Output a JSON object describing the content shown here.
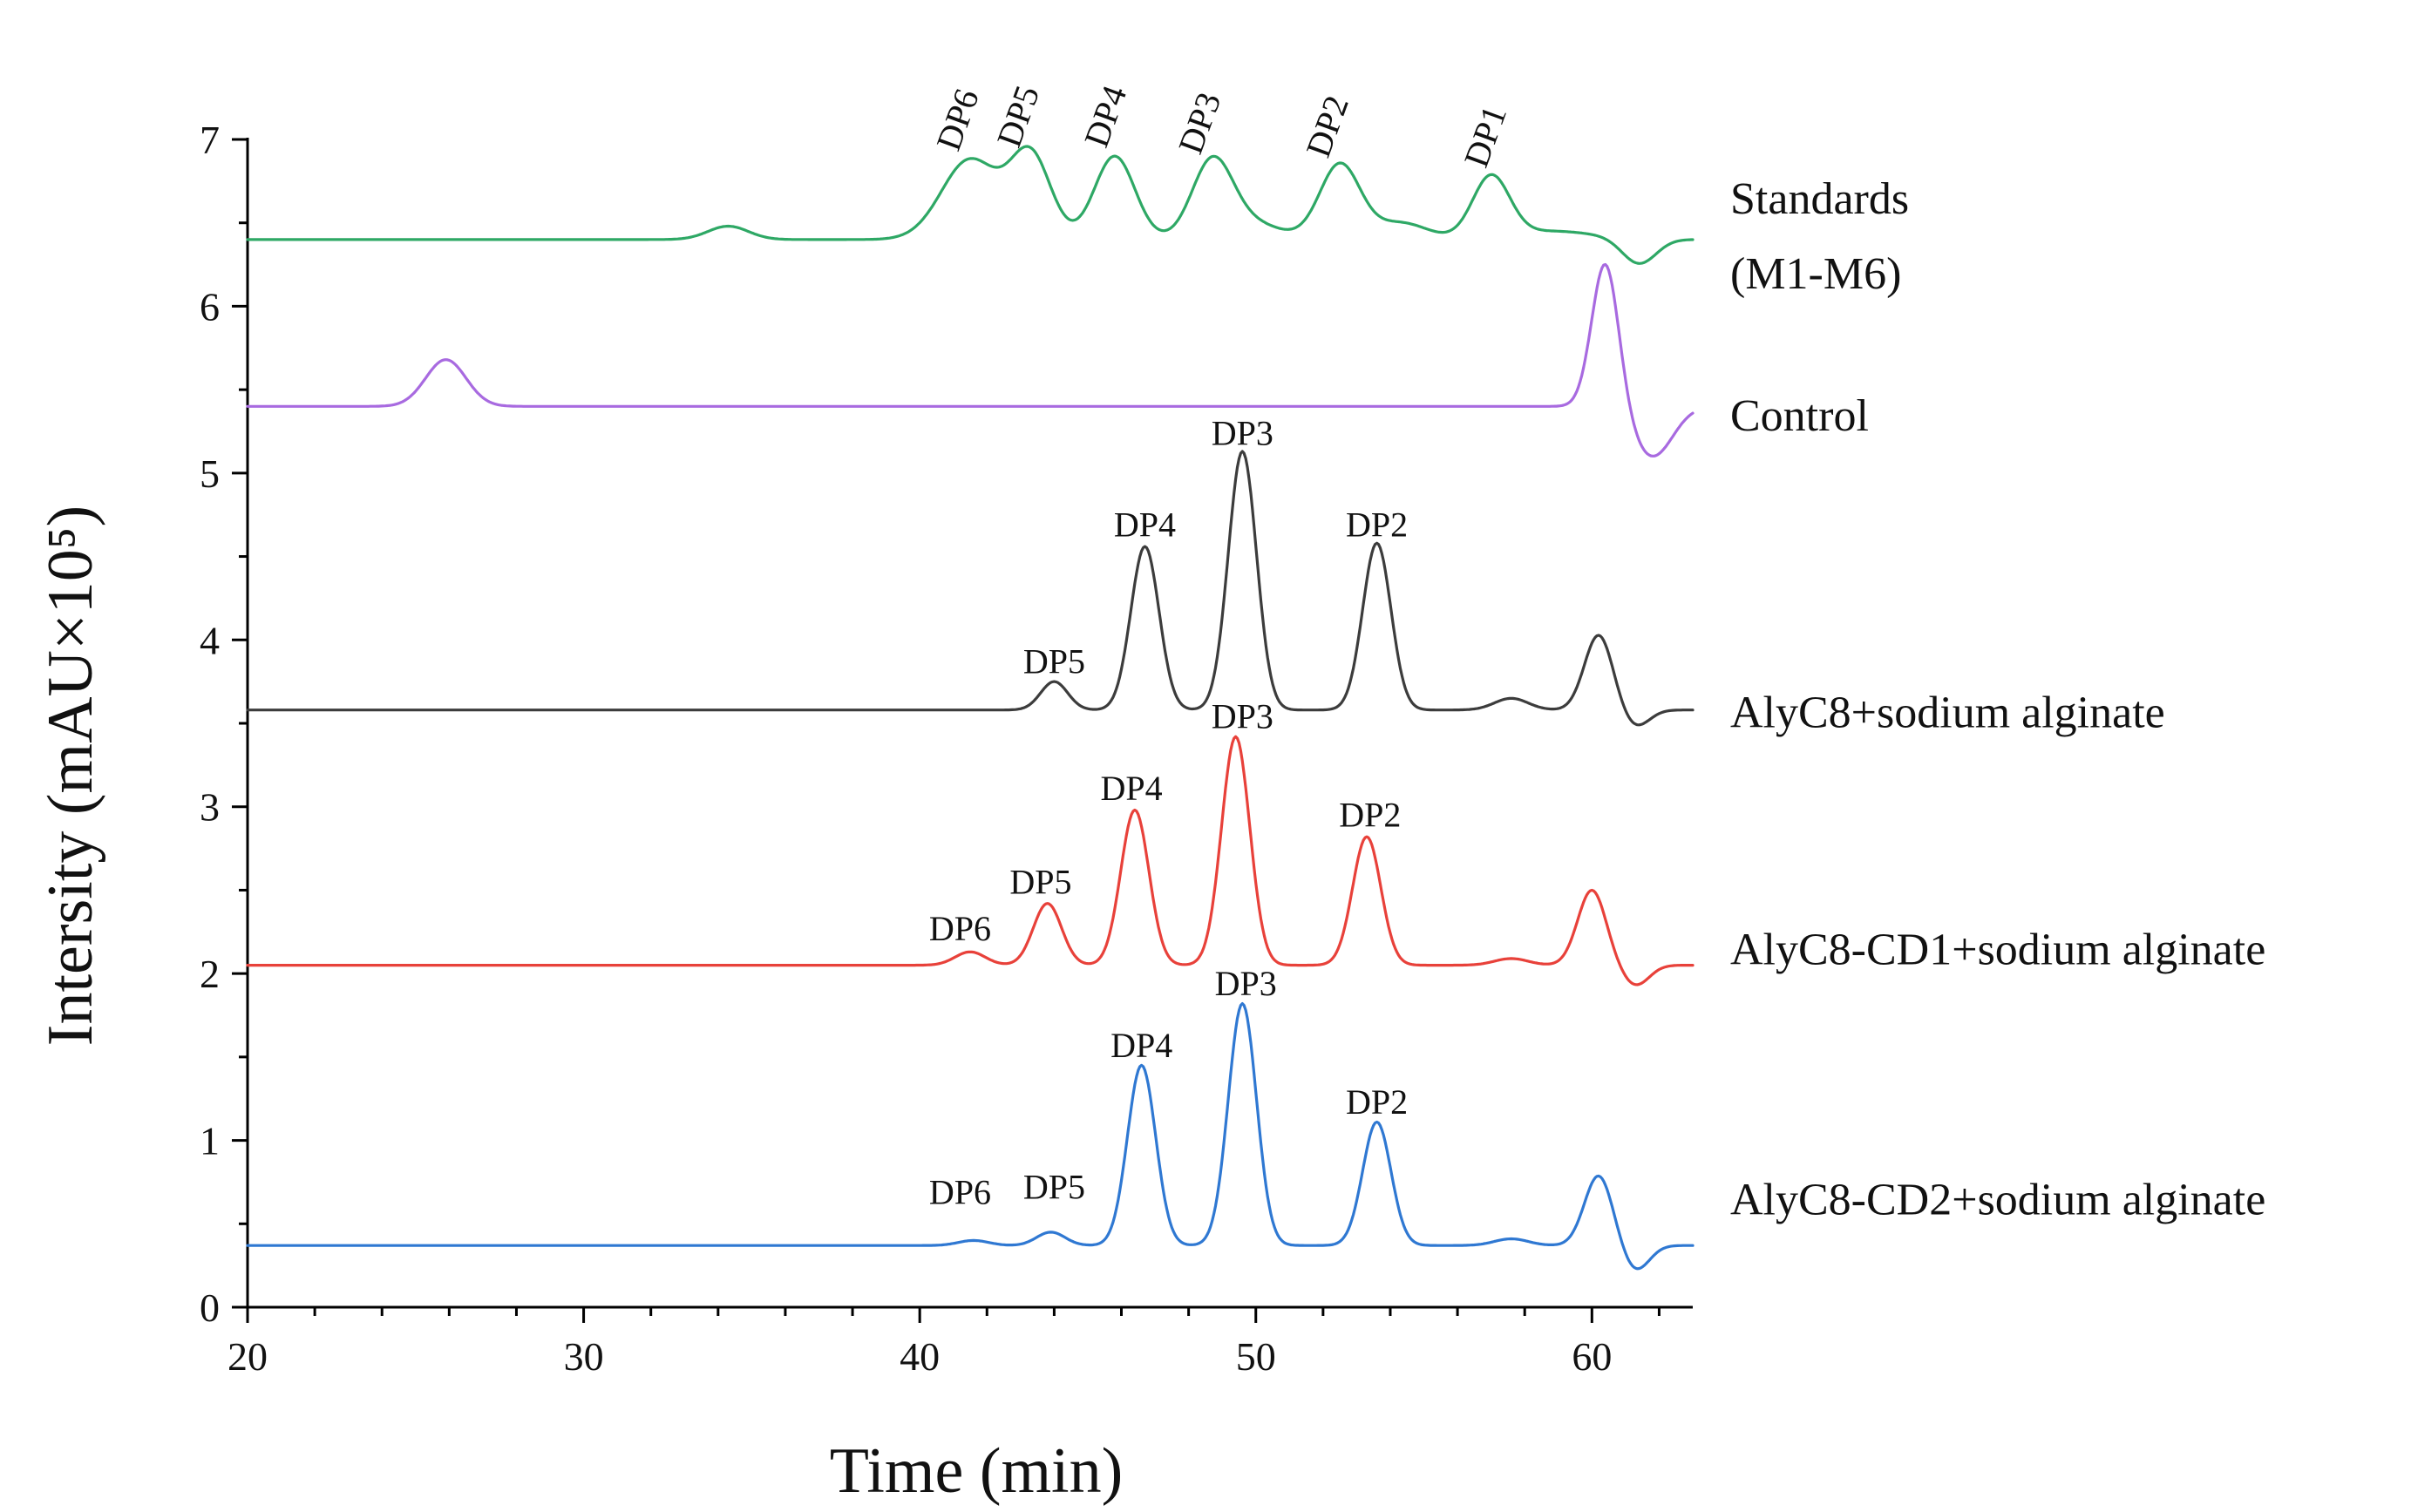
{
  "chart_data": {
    "type": "line",
    "title": "",
    "xlabel": "Time (min)",
    "ylabel": "Intersity (mAU×10⁵)",
    "xlim": [
      20,
      63
    ],
    "ylim": [
      0,
      7
    ],
    "xticks": [
      20,
      30,
      40,
      50,
      60
    ],
    "yticks": [
      0,
      1,
      2,
      3,
      4,
      5,
      6,
      7
    ],
    "series": [
      {
        "name": "Standards (M1-M6)",
        "label_lines": [
          "Standards",
          "(M1-M6)"
        ],
        "color": "#2ea865",
        "baseline": 6.4,
        "peaks": [
          {
            "t": 34.3,
            "h": 0.08,
            "w": 0.6
          },
          {
            "t": 41.5,
            "h": 0.48,
            "w": 0.85
          },
          {
            "t": 43.3,
            "h": 0.5,
            "w": 0.6
          },
          {
            "t": 45.8,
            "h": 0.5,
            "w": 0.6
          },
          {
            "t": 48.7,
            "h": 0.45,
            "w": 0.6
          },
          {
            "t": 52.5,
            "h": 0.45,
            "w": 0.6
          },
          {
            "t": 57.0,
            "h": 0.37,
            "w": 0.55
          },
          {
            "t": 49.8,
            "h": 0.1,
            "w": 0.9
          },
          {
            "t": 54.3,
            "h": 0.1,
            "w": 0.8
          },
          {
            "t": 58.8,
            "h": 0.05,
            "w": 1.3
          },
          {
            "t": 61.4,
            "h": -0.15,
            "w": 0.5
          }
        ],
        "peak_labels": [
          {
            "text": "DP6",
            "t": 41.5,
            "y": 6.92
          },
          {
            "text": "DP5",
            "t": 43.3,
            "y": 6.94
          },
          {
            "text": "DP4",
            "t": 45.9,
            "y": 6.94
          },
          {
            "text": "DP3",
            "t": 48.7,
            "y": 6.9
          },
          {
            "text": "DP2",
            "t": 52.5,
            "y": 6.88
          },
          {
            "text": "DP1",
            "t": 57.2,
            "y": 6.82
          }
        ]
      },
      {
        "name": "Control",
        "label_lines": [
          "Control"
        ],
        "color": "#a86ae0",
        "baseline": 5.4,
        "peaks": [
          {
            "t": 25.9,
            "h": 0.28,
            "w": 0.6
          },
          {
            "t": 60.4,
            "h": 0.87,
            "w": 0.4
          },
          {
            "t": 61.8,
            "h": -0.3,
            "w": 0.6
          }
        ],
        "peak_labels": []
      },
      {
        "name": "AlyC8+sodium alginate",
        "label_lines": [
          "AlyC8+sodium alginate"
        ],
        "color": "#3c3c3c",
        "baseline": 3.58,
        "peaks": [
          {
            "t": 44.0,
            "h": 0.17,
            "w": 0.4
          },
          {
            "t": 46.7,
            "h": 0.98,
            "w": 0.42
          },
          {
            "t": 49.6,
            "h": 1.55,
            "w": 0.42
          },
          {
            "t": 53.6,
            "h": 1.0,
            "w": 0.42
          },
          {
            "t": 57.6,
            "h": 0.07,
            "w": 0.5
          },
          {
            "t": 60.2,
            "h": 0.45,
            "w": 0.42
          },
          {
            "t": 61.3,
            "h": -0.1,
            "w": 0.4
          }
        ],
        "peak_labels": [
          {
            "text": "DP5",
            "t": 44.0,
            "y": 3.8
          },
          {
            "text": "DP4",
            "t": 46.7,
            "y": 4.62
          },
          {
            "text": "DP3",
            "t": 49.6,
            "y": 5.17
          },
          {
            "text": "DP2",
            "t": 53.6,
            "y": 4.62
          }
        ]
      },
      {
        "name": "AlyC8-CD1+sodium alginate",
        "label_lines": [
          "AlyC8-CD1+sodium alginate"
        ],
        "color": "#e8413a",
        "baseline": 2.05,
        "peaks": [
          {
            "t": 41.5,
            "h": 0.08,
            "w": 0.45
          },
          {
            "t": 43.8,
            "h": 0.37,
            "w": 0.42
          },
          {
            "t": 46.4,
            "h": 0.93,
            "w": 0.42
          },
          {
            "t": 49.4,
            "h": 1.37,
            "w": 0.42
          },
          {
            "t": 53.3,
            "h": 0.77,
            "w": 0.42
          },
          {
            "t": 57.6,
            "h": 0.04,
            "w": 0.5
          },
          {
            "t": 60.0,
            "h": 0.45,
            "w": 0.42
          },
          {
            "t": 61.3,
            "h": -0.12,
            "w": 0.4
          }
        ],
        "peak_labels": [
          {
            "text": "DP6",
            "t": 41.2,
            "y": 2.2
          },
          {
            "text": "DP5",
            "t": 43.6,
            "y": 2.48
          },
          {
            "text": "DP4",
            "t": 46.3,
            "y": 3.04
          },
          {
            "text": "DP3",
            "t": 49.6,
            "y": 3.47
          },
          {
            "text": "DP2",
            "t": 53.4,
            "y": 2.88
          }
        ]
      },
      {
        "name": "AlyC8-CD2+sodium alginate",
        "label_lines": [
          "AlyC8-CD2+sodium alginate"
        ],
        "color": "#2f78d2",
        "baseline": 0.37,
        "peaks": [
          {
            "t": 41.6,
            "h": 0.03,
            "w": 0.45
          },
          {
            "t": 43.9,
            "h": 0.08,
            "w": 0.42
          },
          {
            "t": 46.6,
            "h": 1.08,
            "w": 0.42
          },
          {
            "t": 49.6,
            "h": 1.45,
            "w": 0.42
          },
          {
            "t": 53.6,
            "h": 0.74,
            "w": 0.42
          },
          {
            "t": 57.6,
            "h": 0.04,
            "w": 0.5
          },
          {
            "t": 60.2,
            "h": 0.42,
            "w": 0.42
          },
          {
            "t": 61.3,
            "h": -0.15,
            "w": 0.4
          }
        ],
        "peak_labels": [
          {
            "text": "DP6",
            "t": 41.2,
            "y": 0.62
          },
          {
            "text": "DP5",
            "t": 44.0,
            "y": 0.65
          },
          {
            "text": "DP4",
            "t": 46.6,
            "y": 1.5
          },
          {
            "text": "DP3",
            "t": 49.7,
            "y": 1.87
          },
          {
            "text": "DP2",
            "t": 53.6,
            "y": 1.16
          }
        ]
      }
    ]
  }
}
